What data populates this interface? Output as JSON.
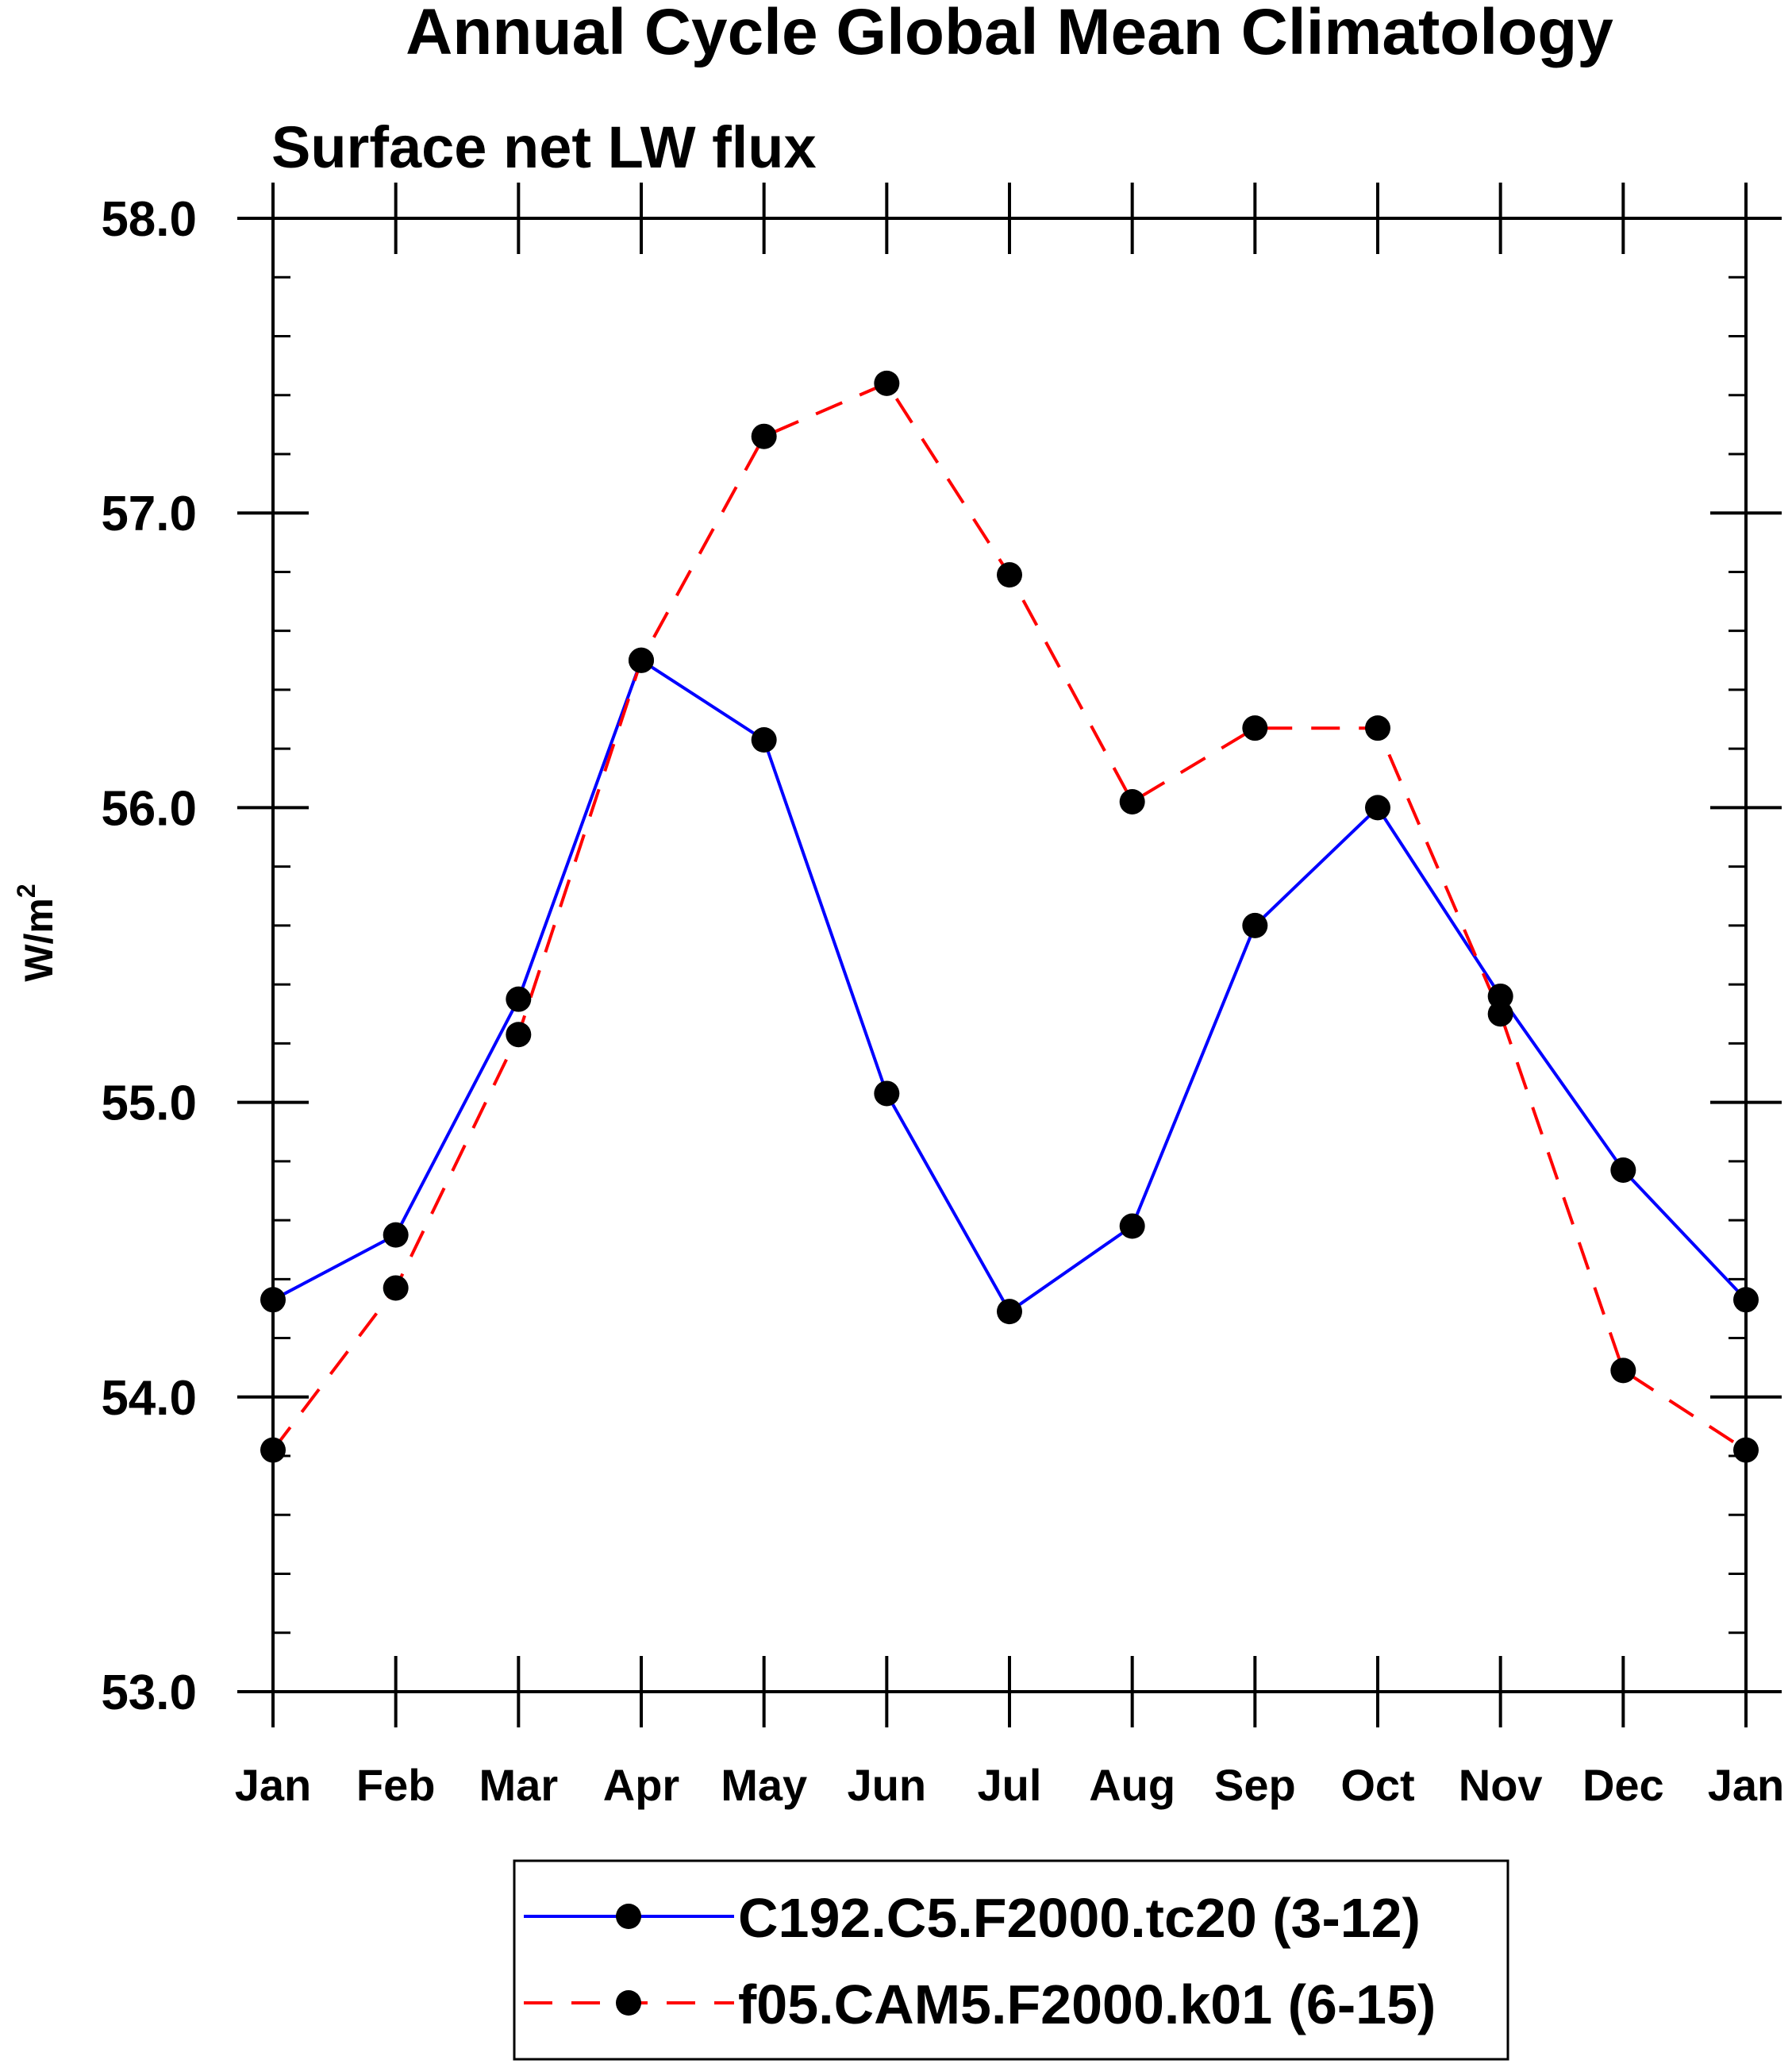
{
  "chart_data": {
    "type": "line",
    "title": "Annual Cycle Global Mean Climatology",
    "subtitle": "Surface net LW flux",
    "ylabel": "W/m",
    "ylabel_superscript": "2",
    "xlabel": "",
    "ylim": [
      53.0,
      58.0
    ],
    "y_major_ticks": [
      53.0,
      54.0,
      55.0,
      56.0,
      57.0,
      58.0
    ],
    "y_tick_labels": [
      "53.0",
      "54.0",
      "55.0",
      "56.0",
      "57.0",
      "58.0"
    ],
    "y_minor_step": 0.2,
    "categories": [
      "Jan",
      "Feb",
      "Mar",
      "Apr",
      "May",
      "Jun",
      "Jul",
      "Aug",
      "Sep",
      "Oct",
      "Nov",
      "Dec",
      "Jan"
    ],
    "grid": false,
    "legend_position": "bottom-center",
    "series": [
      {
        "name": "C192.C5.F2000.tc20 (3-12)",
        "color": "#0000ff",
        "line_style": "solid",
        "marker": "circle",
        "values": [
          54.33,
          54.55,
          55.35,
          56.5,
          56.23,
          55.03,
          54.29,
          54.58,
          55.6,
          56.0,
          55.36,
          54.77,
          54.33
        ]
      },
      {
        "name": "f05.CAM5.F2000.k01 (6-15)",
        "color": "#ff0000",
        "line_style": "dashed",
        "marker": "circle",
        "values": [
          53.82,
          54.37,
          55.23,
          56.5,
          57.26,
          57.44,
          56.79,
          56.02,
          56.27,
          56.27,
          55.3,
          54.09,
          53.82
        ]
      }
    ]
  }
}
